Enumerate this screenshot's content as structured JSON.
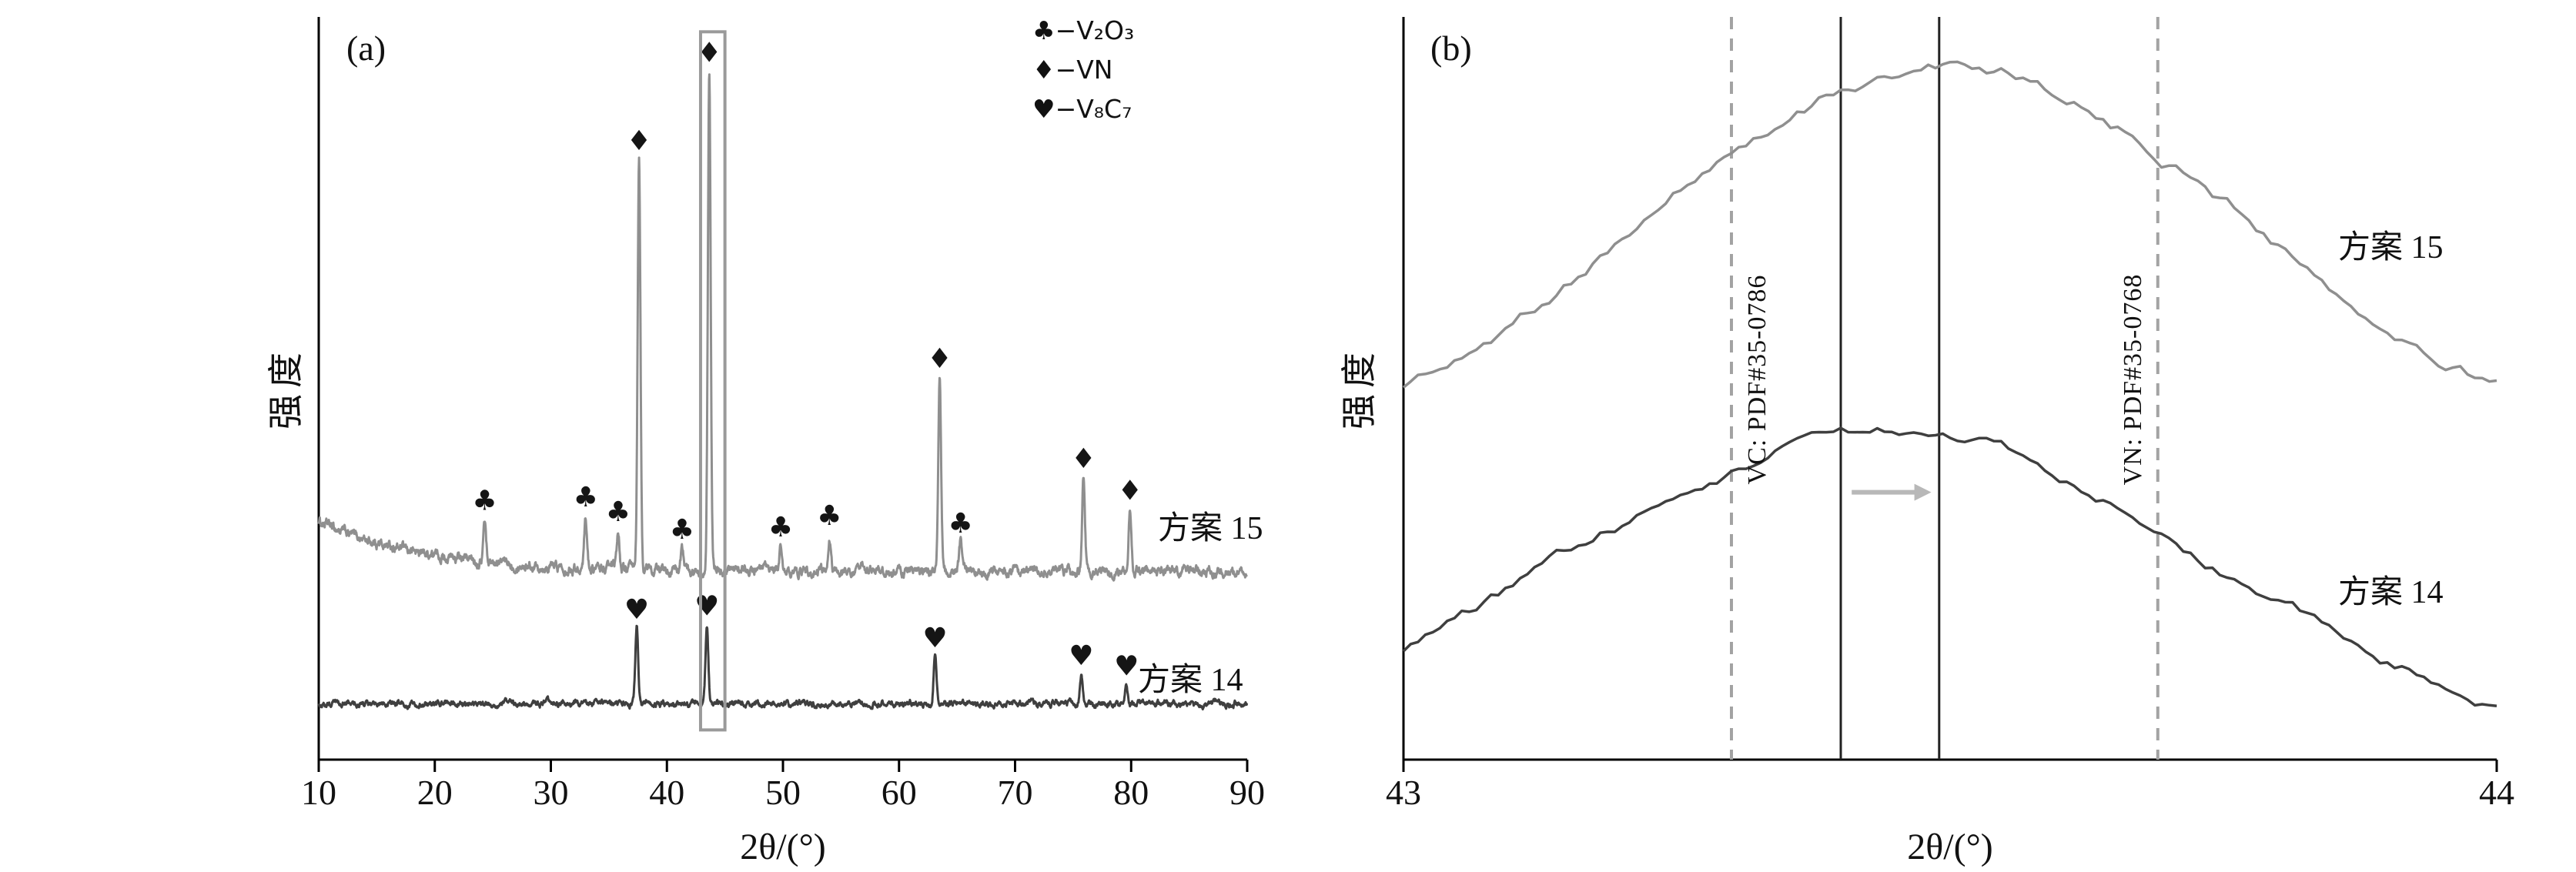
{
  "chart_data": [
    {
      "type": "line",
      "panel": "a",
      "panel_label": "(a)",
      "title": "",
      "xlabel": "2θ/(°)",
      "ylabel": "强度",
      "xlim": [
        10,
        90
      ],
      "xticks": [
        10,
        20,
        30,
        40,
        50,
        60,
        70,
        80,
        90
      ],
      "grid": false,
      "legend_position": "top-right",
      "legend": [
        {
          "marker": "♣",
          "phase": "V₂O₃",
          "display": "♣−V₂O₃"
        },
        {
          "marker": "♦",
          "phase": "VN",
          "display": "♦−VN"
        },
        {
          "marker": "♥",
          "phase": "V₈C₇",
          "display": "♥−V₈C₇"
        }
      ],
      "highlight_box": {
        "x1": 42.9,
        "x2": 45.0,
        "y1": 0.04,
        "y2": 0.98,
        "color": "#9a9a9a"
      },
      "series": [
        {
          "name": "方案 15",
          "label": "方案 15",
          "color": "#8f8f8f",
          "baseline": 0.253,
          "left_decay": {
            "amp": 0.068,
            "tau": 9
          },
          "noise": 0.01,
          "label_x": 82.3,
          "label_y": 0.32,
          "peaks": [
            {
              "x": 24.3,
              "h": 0.055,
              "phase": "V₂O₃",
              "marker": "♣"
            },
            {
              "x": 33.0,
              "h": 0.068,
              "phase": "V₂O₃",
              "marker": "♣"
            },
            {
              "x": 35.8,
              "h": 0.05,
              "phase": "V₂O₃",
              "marker": "♣"
            },
            {
              "x": 37.6,
              "h": 0.55,
              "phase": "VN",
              "marker": "♦"
            },
            {
              "x": 41.3,
              "h": 0.028,
              "phase": "V₂O₃",
              "marker": "♣"
            },
            {
              "x": 43.65,
              "h": 0.67,
              "phase": "VN",
              "marker": "♦"
            },
            {
              "x": 49.8,
              "h": 0.032,
              "phase": "V₂O₃",
              "marker": "♣"
            },
            {
              "x": 54.0,
              "h": 0.048,
              "phase": "V₂O₃",
              "marker": "♣"
            },
            {
              "x": 63.5,
              "h": 0.26,
              "phase": "VN",
              "marker": "♦"
            },
            {
              "x": 65.3,
              "h": 0.038,
              "phase": "V₂O₃",
              "marker": "♣"
            },
            {
              "x": 75.9,
              "h": 0.125,
              "phase": "VN",
              "marker": "♦"
            },
            {
              "x": 79.9,
              "h": 0.082,
              "phase": "VN",
              "marker": "♦"
            }
          ]
        },
        {
          "name": "方案 14",
          "label": "方案 14",
          "color": "#3f3f3f",
          "baseline": 0.075,
          "noise": 0.006,
          "label_x": 80.7,
          "label_y": 0.115,
          "peaks": [
            {
              "x": 37.4,
              "h": 0.1,
              "phase": "V₈C₇",
              "marker": "♥"
            },
            {
              "x": 43.45,
              "h": 0.105,
              "phase": "V₈C₇",
              "marker": "♥"
            },
            {
              "x": 63.1,
              "h": 0.062,
              "phase": "V₈C₇",
              "marker": "♥"
            },
            {
              "x": 75.7,
              "h": 0.038,
              "phase": "V₈C₇",
              "marker": "♥"
            },
            {
              "x": 79.6,
              "h": 0.024,
              "phase": "V₈C₇",
              "marker": "♥"
            }
          ]
        }
      ]
    },
    {
      "type": "line",
      "panel": "b",
      "panel_label": "(b)",
      "title": "",
      "xlabel": "2θ/(°)",
      "ylabel": "强度",
      "xlim": [
        43,
        44
      ],
      "xticks": [
        43,
        44
      ],
      "grid": false,
      "reference_lines": [
        {
          "x": 43.3,
          "style": "dashed",
          "label": "VC: PDF#35-0786",
          "label_side": "right"
        },
        {
          "x": 43.69,
          "style": "dashed",
          "label": "VN: PDF#35-0768",
          "label_side": "left"
        }
      ],
      "peak_marker_lines": [
        {
          "x": 43.4,
          "style": "solid"
        },
        {
          "x": 43.49,
          "style": "solid"
        }
      ],
      "shift_arrow": {
        "x1": 43.41,
        "x2": 43.48,
        "y": 0.36,
        "color": "#b8b8b8"
      },
      "series": [
        {
          "name": "方案 15",
          "label": "方案 15",
          "color": "#8f8f8f",
          "center": 43.5,
          "sigma": 0.28,
          "baseline": 0.4,
          "height": 0.53,
          "noise": 0.016,
          "label_x": 43.845,
          "label_y": 0.7
        },
        {
          "name": "方案 14",
          "label": "方案 14",
          "color": "#3f3f3f",
          "center": 43.44,
          "sigma": 0.3,
          "baseline": 0.0,
          "height": 0.44,
          "noise": 0.014,
          "label_x": 43.845,
          "label_y": 0.235
        }
      ]
    }
  ]
}
